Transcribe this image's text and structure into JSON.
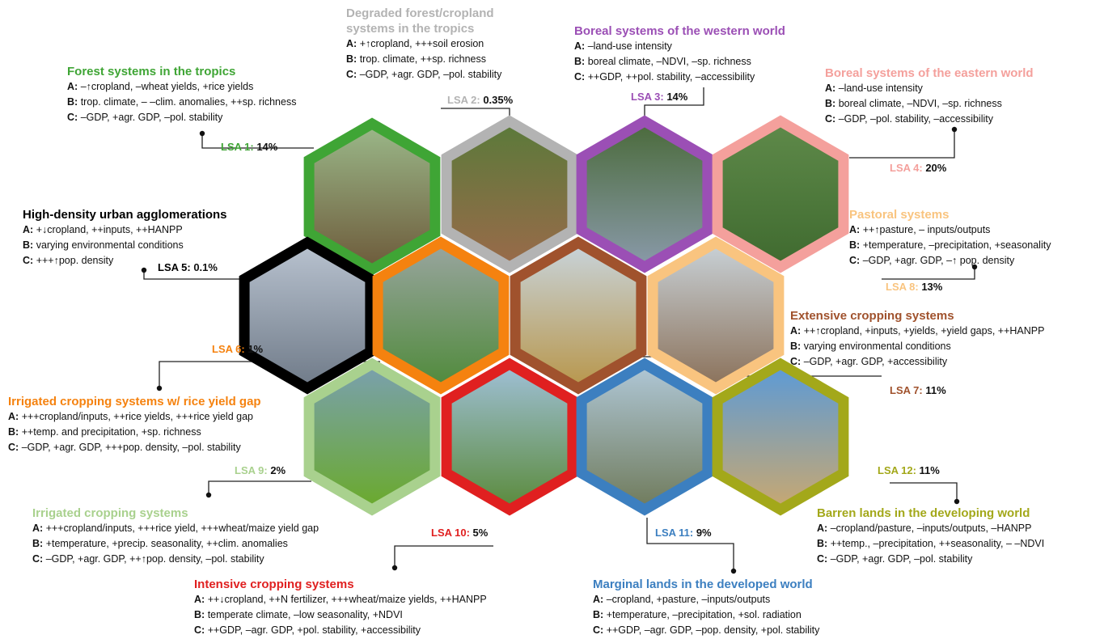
{
  "systems": [
    {
      "title_lines": [
        "Forest systems in the tropics"
      ],
      "color": "#3fa535",
      "label": "LSA 1:",
      "share": "14%",
      "lines": [
        {
          "key": "A:",
          "text": "–↑cropland, –wheat yields, +rice yields"
        },
        {
          "key": "B:",
          "text": "trop. climate, – –clim. anomalies, ++sp. richness"
        },
        {
          "key": "C:",
          "text": "–GDP, +agr. GDP, –pol. stability"
        }
      ]
    },
    {
      "title_lines": [
        "Degraded forest/cropland",
        "systems in the tropics"
      ],
      "color": "#b3b3b3",
      "label": "LSA 2:",
      "share": "0.35%",
      "lines": [
        {
          "key": "A:",
          "text": "+↑cropland, +++soil erosion"
        },
        {
          "key": "B:",
          "text": "trop. climate, ++sp. richness"
        },
        {
          "key": "C:",
          "text": "–GDP, +agr. GDP, –pol. stability"
        }
      ]
    },
    {
      "title_lines": [
        "Boreal systems of the western world"
      ],
      "color": "#9b4fb5",
      "label": "LSA 3:",
      "share": "14%",
      "lines": [
        {
          "key": "A:",
          "text": "–land-use intensity"
        },
        {
          "key": "B:",
          "text": "boreal climate, –NDVI, –sp. richness"
        },
        {
          "key": "C:",
          "text": "++GDP, ++pol. stability, –accessibility"
        }
      ]
    },
    {
      "title_lines": [
        "Boreal systems of the eastern world"
      ],
      "color": "#f4a09c",
      "label": "LSA 4:",
      "share": "20%",
      "lines": [
        {
          "key": "A:",
          "text": "–land-use intensity"
        },
        {
          "key": "B:",
          "text": "boreal climate, –NDVI, –sp. richness"
        },
        {
          "key": "C:",
          "text": "–GDP, –pol. stability, –accessibility"
        }
      ]
    },
    {
      "title_lines": [
        "High-density urban agglomerations"
      ],
      "color": "#000000",
      "label": "LSA 5:",
      "share": "0.1%",
      "lines": [
        {
          "key": "A:",
          "text": "+↓cropland, ++inputs, ++HANPP"
        },
        {
          "key": "B:",
          "text": "varying environmental conditions"
        },
        {
          "key": "C:",
          "text": "+++↑pop. density"
        }
      ]
    },
    {
      "title_lines": [
        "Irrigated cropping systems w/ rice yield gap"
      ],
      "color": "#f5820f",
      "label": "LSA 6:",
      "share": "1%",
      "lines": [
        {
          "key": "A:",
          "text": "+++cropland/inputs, ++rice yields, +++rice yield gap"
        },
        {
          "key": "B:",
          "text": "++temp. and precipitation, +sp. richness"
        },
        {
          "key": "C:",
          "text": "–GDP, +agr. GDP, +++pop. density, –pol. stability"
        }
      ]
    },
    {
      "title_lines": [
        "Extensive cropping systems"
      ],
      "color": "#a0522d",
      "label": "LSA 7:",
      "share": "11%",
      "lines": [
        {
          "key": "A:",
          "text": "++↑cropland, +inputs, +yields, +yield gaps, ++HANPP"
        },
        {
          "key": "B:",
          "text": "varying environmental conditions"
        },
        {
          "key": "C:",
          "text": "–GDP, +agr. GDP, +accessibility"
        }
      ]
    },
    {
      "title_lines": [
        "Pastoral systems"
      ],
      "color": "#f9c47f",
      "label": "LSA 8:",
      "share": "13%",
      "lines": [
        {
          "key": "A:",
          "text": "++↑pasture, – inputs/outputs"
        },
        {
          "key": "B:",
          "text": "+temperature, –precipitation, +seasonality"
        },
        {
          "key": "C:",
          "text": "–GDP, +agr. GDP, –↑ pop. density"
        }
      ]
    },
    {
      "title_lines": [
        "Irrigated cropping systems"
      ],
      "color": "#a9d18e",
      "label": "LSA 9:",
      "share": "2%",
      "lines": [
        {
          "key": "A:",
          "text": "+++cropland/inputs, +++rice yield, +++wheat/maize yield gap"
        },
        {
          "key": "B:",
          "text": "+temperature, +precip. seasonality, ++clim. anomalies"
        },
        {
          "key": "C:",
          "text": "–GDP, +agr. GDP, ++↑pop. density, –pol. stability"
        }
      ]
    },
    {
      "title_lines": [
        "Intensive cropping systems"
      ],
      "color": "#e02020",
      "label": "LSA 10:",
      "share": "5%",
      "lines": [
        {
          "key": "A:",
          "text": "++↓cropland, ++N fertilizer, +++wheat/maize yields, ++HANPP"
        },
        {
          "key": "B:",
          "text": "temperate climate, –low seasonality, +NDVI"
        },
        {
          "key": "C:",
          "text": "++GDP, –agr. GDP, +pol. stability, +accessibility"
        }
      ]
    },
    {
      "title_lines": [
        "Marginal lands in the developed world"
      ],
      "color": "#3c7fc0",
      "label": "LSA 11:",
      "share": "9%",
      "lines": [
        {
          "key": "A:",
          "text": "–cropland, +pasture, –inputs/outputs"
        },
        {
          "key": "B:",
          "text": "+temperature, –precipitation, +sol. radiation"
        },
        {
          "key": "C:",
          "text": "++GDP, –agr. GDP, –pop. density, +pol. stability"
        }
      ]
    },
    {
      "title_lines": [
        "Barren lands in the developing world"
      ],
      "color": "#a3a81a",
      "label": "LSA 12:",
      "share": "11%",
      "lines": [
        {
          "key": "A:",
          "text": "–cropland/pasture, –inputs/outputs, –HANPP"
        },
        {
          "key": "B:",
          "text": "++temp., –precipitation, ++seasonality, – –NDVI"
        },
        {
          "key": "C:",
          "text": "–GDP, +agr. GDP, –pol. stability"
        }
      ]
    }
  ]
}
